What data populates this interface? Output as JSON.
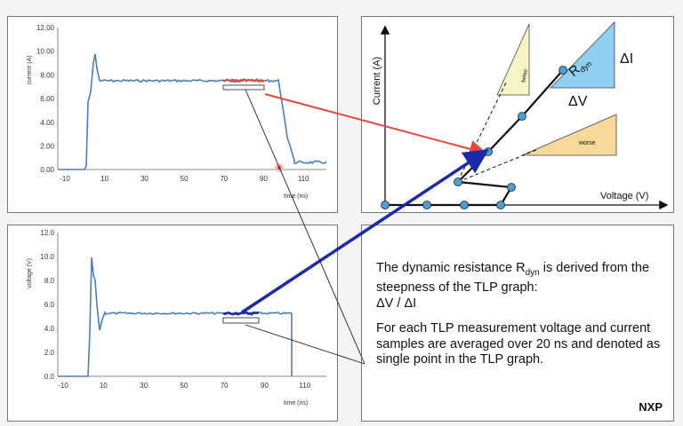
{
  "current_chart": {
    "ylabel": "current (A)",
    "xlabel": "time (ns)",
    "y_ticks": [
      "12.00",
      "10.00",
      "8.00",
      "6.00",
      "4.00",
      "2.00",
      "0.00"
    ],
    "x_ticks": [
      "-10",
      "10",
      "30",
      "50",
      "70",
      "90",
      "110"
    ],
    "line_color": "#4a7ebb",
    "highlight_color": "#e8463a"
  },
  "voltage_chart": {
    "ylabel": "voltage (V)",
    "xlabel": "time (ns)",
    "y_ticks": [
      "12.0",
      "10.0",
      "8.0",
      "6.0",
      "4.0",
      "2.0",
      "0.0"
    ],
    "x_ticks": [
      "-10",
      "10",
      "30",
      "50",
      "70",
      "90",
      "110"
    ],
    "line_color": "#4a7ebb",
    "highlight_color": "#1a2aa8"
  },
  "tlp_chart": {
    "ylabel": "Current (A)",
    "xlabel": "Voltage (V)",
    "rdyn_r": "R",
    "rdyn_sub": "dyn",
    "delta_i": "ΔI",
    "delta_v": "ΔV",
    "better": "better",
    "worse": "worse",
    "point_color": "#4a9fd8",
    "better_color": "#f7f4c6",
    "worse_color": "#f8d99a",
    "rdyn_color": "#8fd0f0"
  },
  "description": {
    "para1_prefix": "The dynamic resistance R",
    "para1_sub": "dyn",
    "para1_suffix": " is derived from the steepness of the TLP graph:",
    "para1_formula": "ΔV / ΔI",
    "para2": "For each TLP measurement voltage and current samples are averaged over 20 ns and denoted as single point in the TLP graph."
  },
  "brand": "NXP"
}
